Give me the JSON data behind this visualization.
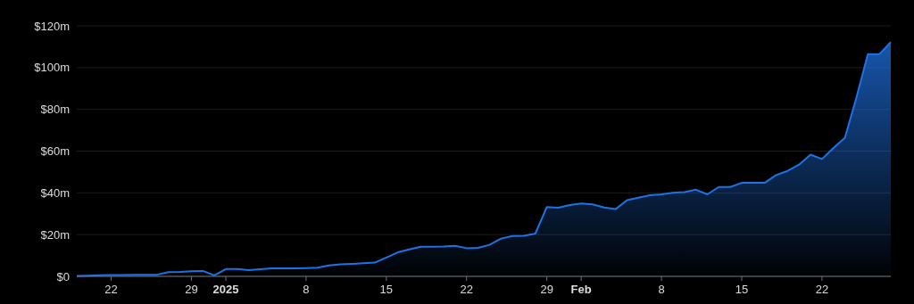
{
  "chart_data": {
    "type": "area",
    "x": [
      "2024-12-19",
      "2024-12-20",
      "2024-12-21",
      "2024-12-22",
      "2024-12-23",
      "2024-12-24",
      "2024-12-25",
      "2024-12-26",
      "2024-12-27",
      "2024-12-28",
      "2024-12-29",
      "2024-12-30",
      "2024-12-31",
      "2025-01-01",
      "2025-01-02",
      "2025-01-03",
      "2025-01-04",
      "2025-01-05",
      "2025-01-06",
      "2025-01-07",
      "2025-01-08",
      "2025-01-09",
      "2025-01-10",
      "2025-01-11",
      "2025-01-12",
      "2025-01-13",
      "2025-01-14",
      "2025-01-15",
      "2025-01-16",
      "2025-01-17",
      "2025-01-18",
      "2025-01-19",
      "2025-01-20",
      "2025-01-21",
      "2025-01-22",
      "2025-01-23",
      "2025-01-24",
      "2025-01-25",
      "2025-01-26",
      "2025-01-27",
      "2025-01-28",
      "2025-01-29",
      "2025-01-30",
      "2025-01-31",
      "2025-02-01",
      "2025-02-02",
      "2025-02-03",
      "2025-02-04",
      "2025-02-05",
      "2025-02-06",
      "2025-02-07",
      "2025-02-08",
      "2025-02-09",
      "2025-02-10",
      "2025-02-11",
      "2025-02-12",
      "2025-02-13",
      "2025-02-14",
      "2025-02-15",
      "2025-02-16",
      "2025-02-17",
      "2025-02-18",
      "2025-02-19",
      "2025-02-20",
      "2025-02-21",
      "2025-02-22",
      "2025-02-23",
      "2025-02-24",
      "2025-02-25",
      "2025-02-26",
      "2025-02-27",
      "2025-02-28"
    ],
    "series": [
      {
        "color": "#1f72e5",
        "values": [
          0.2,
          0.3,
          0.5,
          0.6,
          0.6,
          0.7,
          0.8,
          0.8,
          2.0,
          2.1,
          2.5,
          2.6,
          0.5,
          3.5,
          3.5,
          3.0,
          3.4,
          3.8,
          3.8,
          3.8,
          4.0,
          4.2,
          5.2,
          5.8,
          6.0,
          6.3,
          6.6,
          9.0,
          11.5,
          12.9,
          14.2,
          14.2,
          14.3,
          14.6,
          13.5,
          13.7,
          15.1,
          18.1,
          19.3,
          19.4,
          20.5,
          33.2,
          32.9,
          34.2,
          34.9,
          34.5,
          33.0,
          32.2,
          36.5,
          37.7,
          38.9,
          39.3,
          40.0,
          40.4,
          41.5,
          39.3,
          42.8,
          42.8,
          44.8,
          44.8,
          44.8,
          48.5,
          50.5,
          53.5,
          58.3,
          56.2,
          61.5,
          66.4,
          85.6,
          106.4,
          106.4,
          112.2
        ]
      }
    ],
    "xlim": [
      "2024-12-19",
      "2025-02-28"
    ],
    "xticks": [
      {
        "value": "2024-12-22",
        "label": "22"
      },
      {
        "value": "2024-12-29",
        "label": "29"
      },
      {
        "value": "2025-01-01",
        "label": "2025"
      },
      {
        "value": "2025-01-08",
        "label": "8"
      },
      {
        "value": "2025-01-15",
        "label": "15"
      },
      {
        "value": "2025-01-22",
        "label": "22"
      },
      {
        "value": "2025-01-29",
        "label": "29"
      },
      {
        "value": "2025-02-01",
        "label": "Feb"
      },
      {
        "value": "2025-02-08",
        "label": "8"
      },
      {
        "value": "2025-02-15",
        "label": "15"
      },
      {
        "value": "2025-02-22",
        "label": "22"
      }
    ],
    "ylim": [
      0,
      120
    ],
    "yticks": [
      {
        "value": 0,
        "label": "$0"
      },
      {
        "value": 20,
        "label": "$20m"
      },
      {
        "value": 40,
        "label": "$40m"
      },
      {
        "value": 60,
        "label": "$60m"
      },
      {
        "value": 80,
        "label": "$80m"
      },
      {
        "value": 100,
        "label": "$100m"
      },
      {
        "value": 120,
        "label": "$120m"
      }
    ],
    "grid": "y"
  }
}
